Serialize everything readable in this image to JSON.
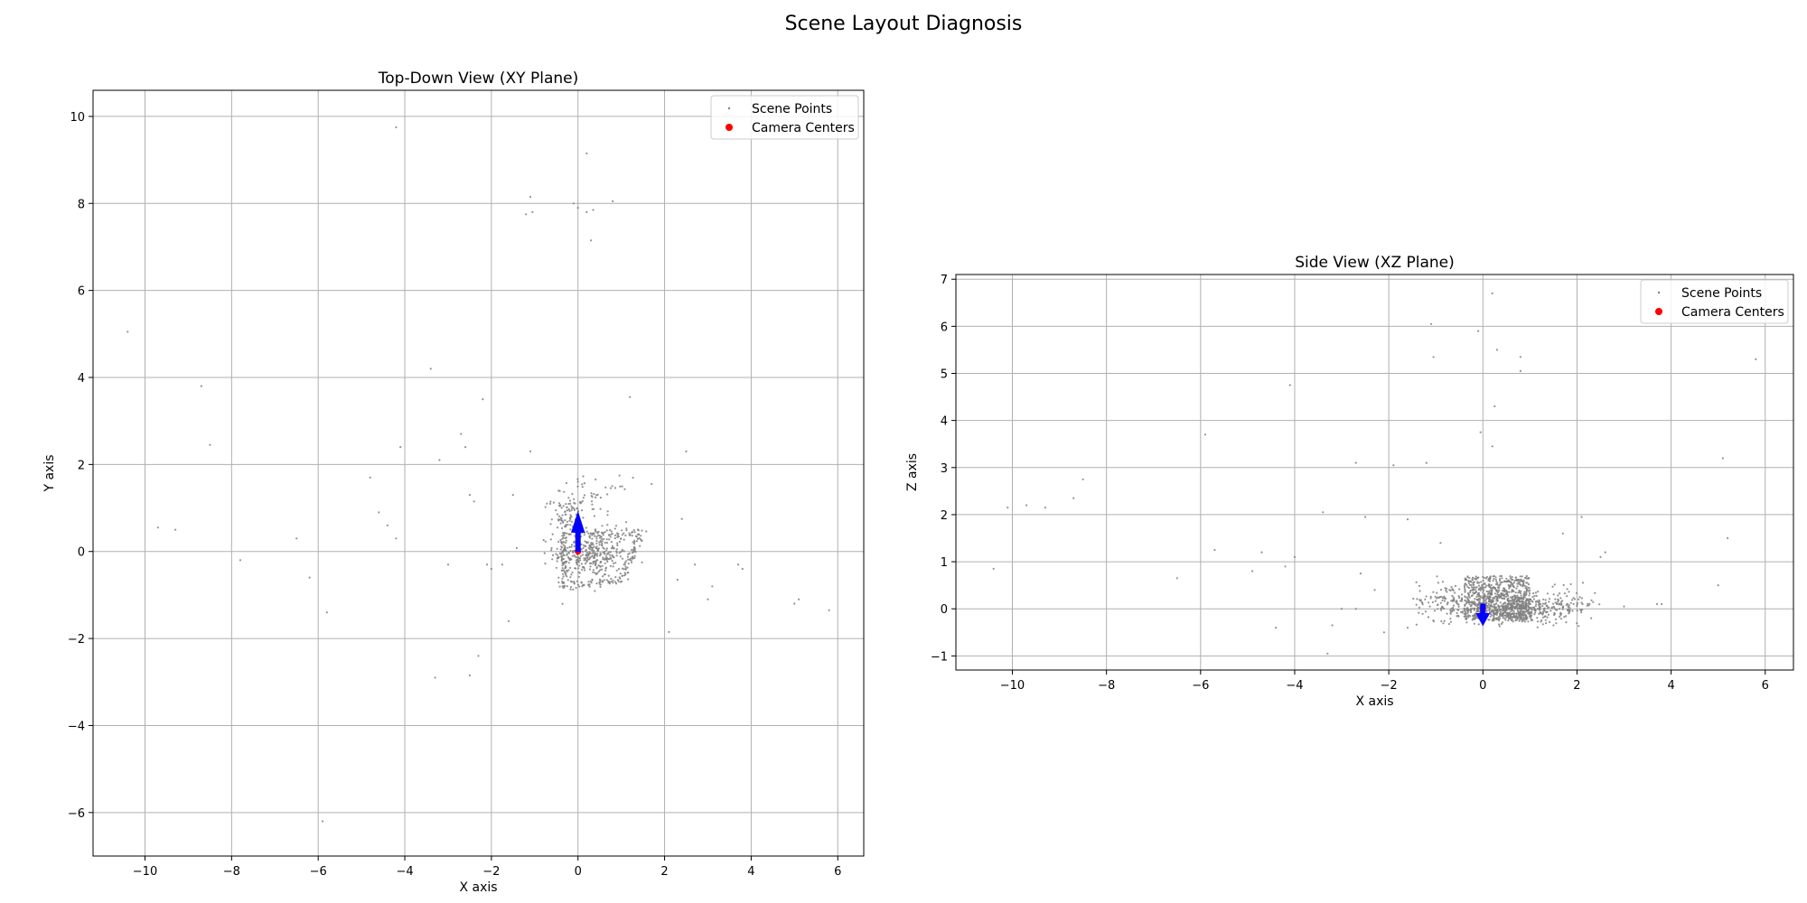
{
  "figure_title": "Scene Layout Diagnosis",
  "colors": {
    "points": "#808080",
    "camera": "#ff0000",
    "arrow": "#0000ff",
    "grid": "#b0b0b0"
  },
  "chart_data": [
    {
      "type": "scatter",
      "title": "Top-Down View (XY Plane)",
      "xlabel": "X axis",
      "ylabel": "Y axis",
      "xlim": [
        -11.2,
        6.6
      ],
      "ylim": [
        -7.0,
        10.6
      ],
      "xticks": [
        -10,
        -8,
        -6,
        -4,
        -2,
        0,
        2,
        4,
        6
      ],
      "yticks": [
        -6,
        -4,
        -2,
        0,
        2,
        4,
        6,
        8,
        10
      ],
      "grid": true,
      "legend": {
        "placement": "top-right",
        "entries": [
          "Scene Points",
          "Camera Centers"
        ]
      },
      "series": [
        {
          "name": "Scene Points",
          "outliers": [
            [
              -10.4,
              5.05
            ],
            [
              -9.7,
              0.55
            ],
            [
              -9.3,
              0.5
            ],
            [
              -8.7,
              3.8
            ],
            [
              -8.5,
              2.45
            ],
            [
              -6.5,
              0.3
            ],
            [
              -5.8,
              -1.4
            ],
            [
              -5.9,
              -6.2
            ],
            [
              -4.2,
              9.75
            ],
            [
              -4.1,
              2.4
            ],
            [
              -4.2,
              0.3
            ],
            [
              -3.4,
              4.2
            ],
            [
              -3.3,
              -2.9
            ],
            [
              -3.2,
              2.1
            ],
            [
              -3.0,
              -0.3
            ],
            [
              -2.7,
              2.7
            ],
            [
              -2.6,
              2.4
            ],
            [
              -2.5,
              1.3
            ],
            [
              -2.4,
              1.15
            ],
            [
              -2.5,
              -2.85
            ],
            [
              -2.3,
              -2.4
            ],
            [
              -2.2,
              3.5
            ],
            [
              -2.1,
              -0.3
            ],
            [
              -2.0,
              -0.4
            ],
            [
              -1.75,
              -0.3
            ],
            [
              -1.6,
              -1.6
            ],
            [
              -1.5,
              1.3
            ],
            [
              -1.1,
              2.3
            ],
            [
              -1.2,
              7.75
            ],
            [
              -1.1,
              8.15
            ],
            [
              -1.05,
              7.8
            ],
            [
              -0.1,
              8.0
            ],
            [
              0.0,
              7.9
            ],
            [
              0.2,
              9.15
            ],
            [
              0.2,
              7.8
            ],
            [
              0.3,
              7.15
            ],
            [
              0.35,
              7.85
            ],
            [
              0.8,
              8.05
            ],
            [
              1.2,
              3.55
            ],
            [
              1.7,
              1.55
            ],
            [
              2.4,
              0.75
            ],
            [
              2.5,
              2.3
            ],
            [
              2.7,
              -0.3
            ],
            [
              2.1,
              -1.85
            ],
            [
              3.0,
              -1.1
            ],
            [
              3.7,
              -0.3
            ],
            [
              3.8,
              -0.4
            ],
            [
              5.0,
              -1.2
            ],
            [
              5.1,
              -1.1
            ],
            [
              5.8,
              -1.35
            ],
            [
              3.1,
              -0.8
            ],
            [
              2.3,
              -0.65
            ],
            [
              -4.8,
              1.7
            ],
            [
              -4.6,
              0.9
            ],
            [
              -4.4,
              0.6
            ],
            [
              -6.2,
              -0.6
            ],
            [
              -7.8,
              -0.2
            ]
          ],
          "clusters": [
            {
              "center": [
                0.3,
                -0.05
              ],
              "spread": [
                0.85,
                0.55
              ],
              "count": 350
            },
            {
              "center": [
                -0.3,
                0.8
              ],
              "spread": [
                0.35,
                0.45
              ],
              "count": 70
            },
            {
              "center": [
                0.3,
                1.2
              ],
              "spread": [
                0.9,
                0.5
              ],
              "count": 60
            }
          ],
          "outline": [
            [
              -0.35,
              0.4
            ],
            [
              1.45,
              0.45
            ],
            [
              1.0,
              -0.65
            ],
            [
              -0.35,
              -0.8
            ]
          ]
        },
        {
          "name": "Camera Centers",
          "points": [
            [
              0.0,
              0.0
            ]
          ]
        }
      ],
      "arrows": [
        {
          "from": [
            0.0,
            0.0
          ],
          "to": [
            0.0,
            0.9
          ]
        }
      ]
    },
    {
      "type": "scatter",
      "title": "Side View (XZ Plane)",
      "xlabel": "X axis",
      "ylabel": "Z axis",
      "xlim": [
        -11.2,
        6.6
      ],
      "ylim": [
        -1.3,
        7.1
      ],
      "xticks": [
        -10,
        -8,
        -6,
        -4,
        -2,
        0,
        2,
        4,
        6
      ],
      "yticks": [
        -1,
        0,
        1,
        2,
        3,
        4,
        5,
        6,
        7
      ],
      "grid": true,
      "legend": {
        "placement": "top-right",
        "entries": [
          "Scene Points",
          "Camera Centers"
        ]
      },
      "series": [
        {
          "name": "Scene Points",
          "outliers": [
            [
              -10.4,
              0.85
            ],
            [
              -10.1,
              2.15
            ],
            [
              -9.7,
              2.2
            ],
            [
              -9.3,
              2.15
            ],
            [
              -8.7,
              2.35
            ],
            [
              -8.5,
              2.75
            ],
            [
              -6.5,
              0.65
            ],
            [
              -5.9,
              3.7
            ],
            [
              -5.7,
              1.25
            ],
            [
              -4.9,
              0.8
            ],
            [
              -4.7,
              1.2
            ],
            [
              -4.4,
              -0.4
            ],
            [
              -4.2,
              0.9
            ],
            [
              -4.1,
              4.75
            ],
            [
              -4.0,
              1.1
            ],
            [
              -3.4,
              2.05
            ],
            [
              -3.3,
              -0.95
            ],
            [
              -3.2,
              -0.35
            ],
            [
              -2.7,
              3.1
            ],
            [
              -2.6,
              0.75
            ],
            [
              -2.5,
              1.95
            ],
            [
              -2.3,
              0.4
            ],
            [
              -1.9,
              3.05
            ],
            [
              -1.6,
              1.9
            ],
            [
              -1.2,
              3.1
            ],
            [
              -1.05,
              5.35
            ],
            [
              -1.1,
              6.05
            ],
            [
              -0.9,
              1.4
            ],
            [
              -0.1,
              5.9
            ],
            [
              -0.05,
              3.75
            ],
            [
              0.2,
              6.7
            ],
            [
              0.2,
              3.45
            ],
            [
              0.25,
              4.3
            ],
            [
              0.3,
              5.5
            ],
            [
              0.8,
              5.35
            ],
            [
              0.8,
              5.05
            ],
            [
              1.7,
              1.6
            ],
            [
              2.1,
              1.95
            ],
            [
              2.5,
              1.1
            ],
            [
              2.6,
              1.2
            ],
            [
              3.0,
              0.05
            ],
            [
              3.7,
              0.1
            ],
            [
              3.8,
              0.1
            ],
            [
              5.0,
              0.5
            ],
            [
              5.1,
              3.2
            ],
            [
              5.2,
              1.5
            ],
            [
              5.8,
              5.3
            ],
            [
              -2.1,
              -0.5
            ],
            [
              -1.6,
              -0.4
            ],
            [
              1.5,
              -0.35
            ],
            [
              2.3,
              -0.2
            ],
            [
              -2.7,
              0.0
            ],
            [
              -3.0,
              0.0
            ]
          ],
          "clusters": [
            {
              "center": [
                0.7,
                0.0
              ],
              "spread": [
                1.0,
                0.3
              ],
              "count": 420
            },
            {
              "center": [
                -0.8,
                0.2
              ],
              "spread": [
                0.6,
                0.45
              ],
              "count": 120
            },
            {
              "center": [
                1.8,
                0.1
              ],
              "spread": [
                0.6,
                0.35
              ],
              "count": 90
            }
          ],
          "bands": [
            {
              "x": [
                -0.4,
                1.0
              ],
              "y": [
                -0.25,
                0.7
              ],
              "count": 700
            }
          ]
        },
        {
          "name": "Camera Centers",
          "points": [
            [
              0.0,
              0.0
            ]
          ]
        }
      ],
      "arrows": [
        {
          "from": [
            0.0,
            0.1
          ],
          "to": [
            0.0,
            -0.35
          ]
        }
      ]
    }
  ]
}
